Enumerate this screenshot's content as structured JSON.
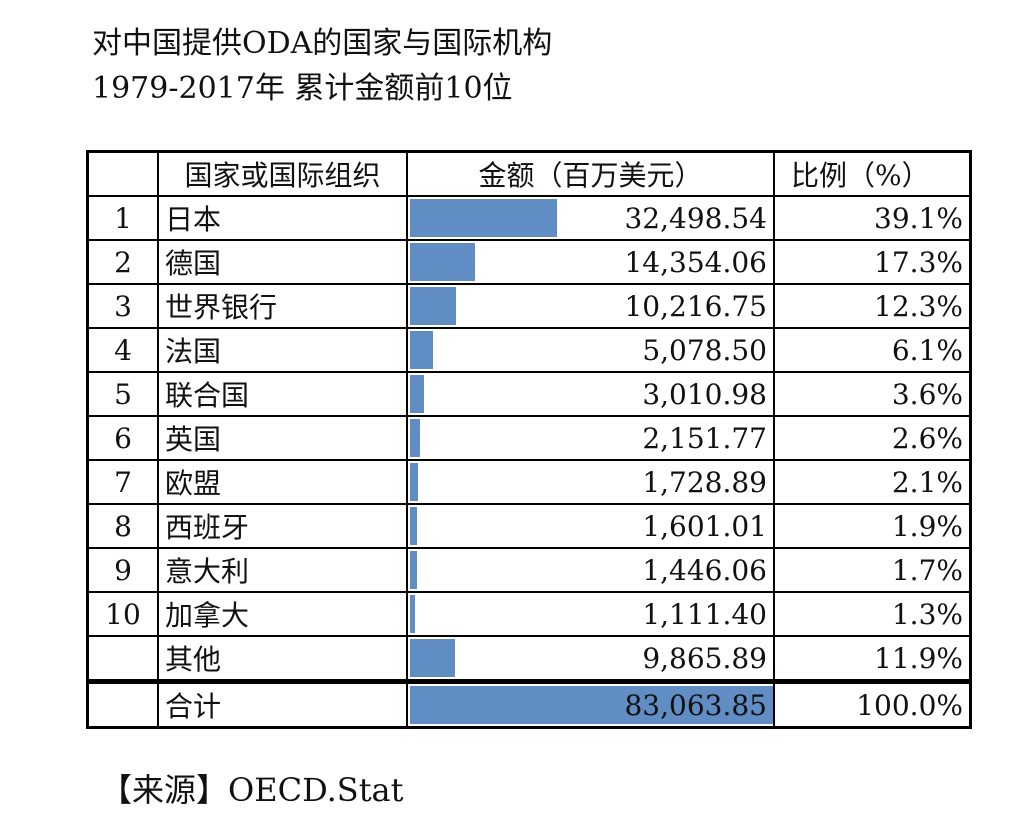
{
  "title_line1": "对中国提供ODA的国家与国际机构",
  "title_line2": "1979-2017年 累计金额前10位",
  "headers": {
    "rank": "",
    "name": "国家或国际组织",
    "amount": "金额（百万美元）",
    "pct": "比例（%）"
  },
  "source": "【来源】OECD.Stat",
  "bar_color": "#4f81bd",
  "chart_data": {
    "type": "table",
    "columns": [
      "",
      "国家或国际组织",
      "金额（百万美元）",
      "比例（%）"
    ],
    "rows": [
      {
        "rank": "1",
        "name": "日本",
        "amount": "32,498.54",
        "value": 32498.54,
        "pct": "39.1%"
      },
      {
        "rank": "2",
        "name": "德国",
        "amount": "14,354.06",
        "value": 14354.06,
        "pct": "17.3%"
      },
      {
        "rank": "3",
        "name": "世界银行",
        "amount": "10,216.75",
        "value": 10216.75,
        "pct": "12.3%"
      },
      {
        "rank": "4",
        "name": "法国",
        "amount": "5,078.50",
        "value": 5078.5,
        "pct": "6.1%"
      },
      {
        "rank": "5",
        "name": "联合国",
        "amount": "3,010.98",
        "value": 3010.98,
        "pct": "3.6%"
      },
      {
        "rank": "6",
        "name": "英国",
        "amount": "2,151.77",
        "value": 2151.77,
        "pct": "2.6%"
      },
      {
        "rank": "7",
        "name": "欧盟",
        "amount": "1,728.89",
        "value": 1728.89,
        "pct": "2.1%"
      },
      {
        "rank": "8",
        "name": "西班牙",
        "amount": "1,601.01",
        "value": 1601.01,
        "pct": "1.9%"
      },
      {
        "rank": "9",
        "name": "意大利",
        "amount": "1,446.06",
        "value": 1446.06,
        "pct": "1.7%"
      },
      {
        "rank": "10",
        "name": "加拿大",
        "amount": "1,111.40",
        "value": 1111.4,
        "pct": "1.3%"
      },
      {
        "rank": "",
        "name": "其他",
        "amount": "9,865.89",
        "value": 9865.89,
        "pct": "11.9%"
      }
    ],
    "total": {
      "rank": "",
      "name": "合计",
      "amount": "83,063.85",
      "value": 83063.85,
      "pct": "100.0%"
    }
  }
}
